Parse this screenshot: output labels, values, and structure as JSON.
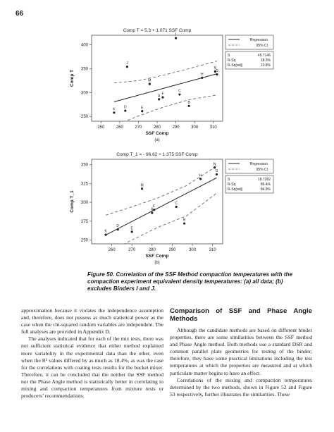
{
  "page_number": "66",
  "figure_caption": "Figure 50. Correlation of the SSF Method compaction temperatures with the compaction experiment equivalent density temperatures: (a) all data; (b) excludes Binders I and J.",
  "chart_data": [
    {
      "type": "scatter",
      "title": "Comp T = 5.3 + 1.071 SSF Comp",
      "xlabel": "SSF Comp",
      "ylabel": "Comp T",
      "panel_label": "(a)",
      "xlim": [
        245,
        315
      ],
      "ylim": [
        240,
        420
      ],
      "xticks": [
        250,
        260,
        270,
        280,
        290,
        300,
        310
      ],
      "yticks": [
        250,
        300,
        350,
        400
      ],
      "points": [
        {
          "label": "I",
          "x": 290,
          "y": 414
        },
        {
          "label": "J",
          "x": 264,
          "y": 354
        },
        {
          "label": "N",
          "x": 311,
          "y": 344
        },
        {
          "label": "G",
          "x": 312,
          "y": 338
        },
        {
          "label": "H",
          "x": 304,
          "y": 331
        },
        {
          "label": "M",
          "x": 276,
          "y": 318
        },
        {
          "label": "C",
          "x": 292,
          "y": 296
        },
        {
          "label": "F",
          "x": 283,
          "y": 290
        },
        {
          "label": "A",
          "x": 281,
          "y": 286
        },
        {
          "label": "B",
          "x": 297,
          "y": 272
        },
        {
          "label": "D",
          "x": 263,
          "y": 262
        },
        {
          "label": "E",
          "x": 272,
          "y": 261
        },
        {
          "label": "K",
          "x": 257,
          "y": 258
        }
      ],
      "fit": {
        "intercept": 5.3,
        "slope": 1.071
      },
      "ci_upper": [
        [
          257,
          320
        ],
        [
          270,
          325
        ],
        [
          283,
          336
        ],
        [
          297,
          350
        ],
        [
          312,
          366
        ]
      ],
      "ci_lower": [
        [
          257,
          230
        ],
        [
          270,
          251
        ],
        [
          283,
          269
        ],
        [
          297,
          285
        ],
        [
          312,
          295
        ]
      ],
      "legend": {
        "line": "Regression",
        "ci": "95% CI",
        "position": "right"
      },
      "stats": [
        {
          "name": "S",
          "value": "45.7146"
        },
        {
          "name": "R-Sq",
          "value": "18.3%"
        },
        {
          "name": "R-Sq(adj)",
          "value": "10.8%"
        }
      ]
    },
    {
      "type": "scatter",
      "title": "Comp T_1 = - 96.62 + 1.375 SSF Comp",
      "xlabel": "SSF Comp",
      "ylabel": "Comp T_1",
      "panel_label": "(b)",
      "xlim": [
        250,
        315
      ],
      "ylim": [
        245,
        357
      ],
      "xticks": [
        260,
        270,
        280,
        290,
        300,
        310
      ],
      "yticks": [
        250,
        275,
        300,
        325,
        350
      ],
      "points": [
        {
          "label": "N",
          "x": 311,
          "y": 346
        },
        {
          "label": "G",
          "x": 312,
          "y": 337
        },
        {
          "label": "H",
          "x": 304,
          "y": 331
        },
        {
          "label": "M",
          "x": 275,
          "y": 318
        },
        {
          "label": "C",
          "x": 292,
          "y": 294
        },
        {
          "label": "F",
          "x": 281,
          "y": 290
        },
        {
          "label": "A",
          "x": 280,
          "y": 286
        },
        {
          "label": "B",
          "x": 296,
          "y": 272
        },
        {
          "label": "D",
          "x": 263,
          "y": 264
        },
        {
          "label": "E",
          "x": 270,
          "y": 261
        },
        {
          "label": "K",
          "x": 257,
          "y": 257
        }
      ],
      "fit": {
        "intercept": -96.62,
        "slope": 1.375
      },
      "ci_upper": [
        [
          257,
          283
        ],
        [
          270,
          294
        ],
        [
          283,
          306
        ],
        [
          297,
          322
        ],
        [
          312,
          348
        ]
      ],
      "ci_lower": [
        [
          257,
          232
        ],
        [
          270,
          250
        ],
        [
          283,
          267
        ],
        [
          297,
          282
        ],
        [
          312,
          312
        ]
      ],
      "legend": {
        "line": "Regression",
        "ci": "95% CI",
        "position": "right"
      },
      "stats": [
        {
          "name": "S",
          "value": "18.7282"
        },
        {
          "name": "R-Sq",
          "value": "86.4%"
        },
        {
          "name": "R-Sq(adj)",
          "value": "84.9%"
        }
      ]
    }
  ],
  "left_column": [
    "approximation because it violates the independence assumption and, therefore, does not possess as much statistical power as the case when the chi-squared random variables are independent. The full analyses are provided in Appendix D.",
    "The analyses indicated that for each of the mix tests, there was not sufficient statistical evidence that either method explained more variability in the experimental data than the other, even when the R² values differed by as much as 18.4%, as was the case for the correlations with coating tests results for the bucket mixer. Therefore, it can be concluded that the neither the SSF method nor the Phase Angle method is statistically better in correlating to mixing and compaction temperatures from mixture tests or producers’ recommendations."
  ],
  "right_column": {
    "heading": "Comparison of SSF and Phase Angle Methods",
    "paragraphs": [
      "Although the candidate methods are based on different binder properties, there are some similarities between the SSF method and Phase Angle method. Both methods use a standard DSR and common parallel plate geometries for testing of the binder; therefore, they have some practical limitations including the test temperatures at which the properties are measured and at which particulate matter begins to have an effect.",
      "Correlations of the mixing and compaction temperatures determined by the two methods, shown in Figure 52 and Figure 53 respectively, further illustrates the similarities. These"
    ]
  }
}
